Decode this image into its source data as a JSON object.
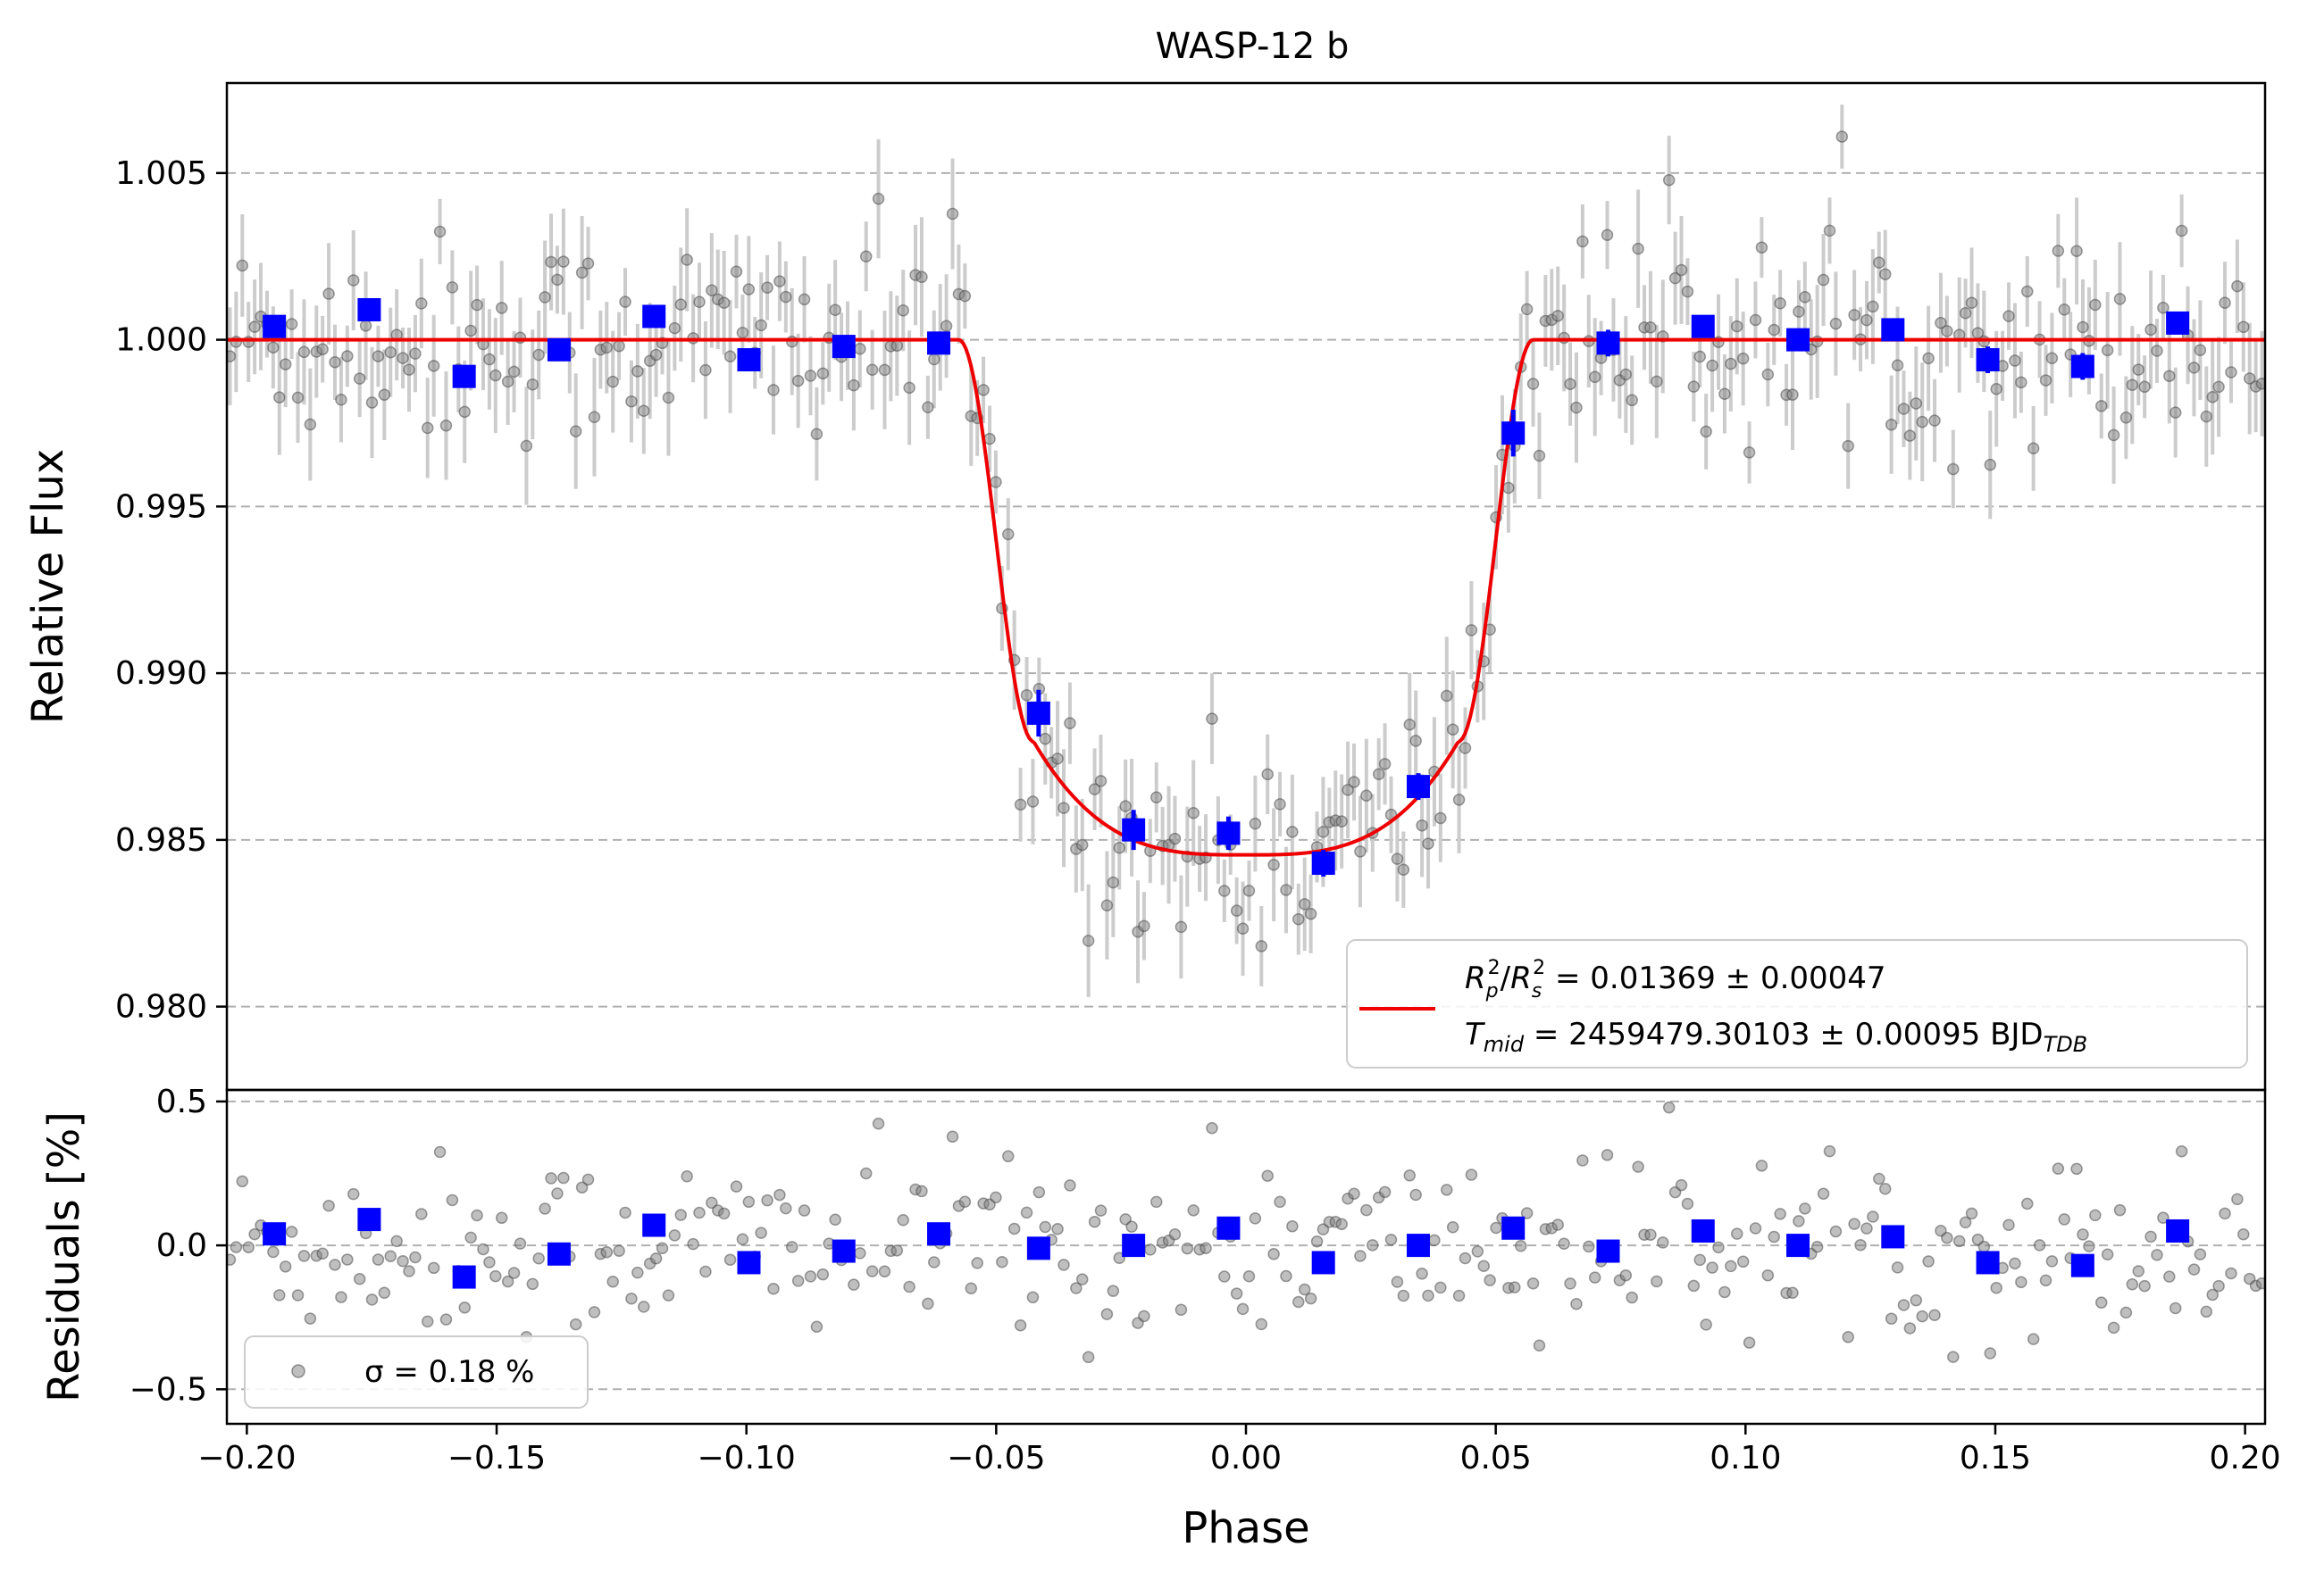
{
  "chart_data": [
    {
      "type": "scatter",
      "title": "WASP-12 b",
      "xlabel": "",
      "ylabel": "Relative Flux",
      "xlim": [
        -0.204,
        0.204
      ],
      "ylim": [
        0.9775,
        1.0077
      ],
      "xticks": [
        -0.2,
        -0.15,
        -0.1,
        -0.05,
        0.0,
        0.05,
        0.1,
        0.15,
        0.2
      ],
      "yticks": [
        0.98,
        0.985,
        0.99,
        0.995,
        1.0,
        1.005
      ],
      "ytick_labels": [
        "0.980",
        "0.985",
        "0.990",
        "0.995",
        "1.000",
        "1.005"
      ],
      "grid": "horizontal dashed",
      "colors": {
        "raw": "#808080",
        "errorbar": "#cccccc",
        "binned": "#0000ff",
        "model": "#ee0000"
      },
      "transit_model": {
        "rp2_rs2": 0.01369,
        "rp2_rs2_err": 0.00047,
        "t_mid": 2459479.30103,
        "t_mid_err": 0.00095,
        "depth_center": 0.98455,
        "ingress_start": -0.0575,
        "full_start": -0.0425,
        "full_end": 0.0425,
        "egress_end": 0.0575
      },
      "series": [
        {
          "name": "binned",
          "x": [
            -0.1945,
            -0.1755,
            -0.1565,
            -0.1375,
            -0.1185,
            -0.0995,
            -0.0805,
            -0.0615,
            -0.0415,
            -0.0225,
            -0.0035,
            0.0155,
            0.0345,
            0.0535,
            0.0725,
            0.0915,
            0.1105,
            0.1295,
            0.1485,
            0.1675,
            0.1865
          ],
          "y": [
            1.0004,
            1.0009,
            0.9989,
            0.9997,
            1.0007,
            0.9994,
            0.9998,
            0.9999,
            0.9888,
            0.9853,
            0.9852,
            0.9843,
            0.9866,
            0.9972,
            0.9999,
            1.0004,
            1.0,
            1.0003,
            0.9994,
            0.9992,
            1.0005
          ],
          "yerr": [
            0.0003,
            0.0003,
            0.0003,
            0.0003,
            0.0003,
            0.0003,
            0.0003,
            0.0003,
            0.0007,
            0.0006,
            0.0005,
            0.0004,
            0.0004,
            0.0007,
            0.0004,
            0.0003,
            0.0003,
            0.0003,
            0.0004,
            0.0004,
            0.0003
          ]
        }
      ],
      "legend": {
        "position": "lower-right",
        "line1": "R²p/R²s = 0.01369 ± 0.00047",
        "line2": "Tmid = 2459479.30103 ± 0.00095 BJD TDB"
      }
    },
    {
      "type": "scatter",
      "xlabel": "Phase",
      "ylabel": "Residuals [%]",
      "xlim": [
        -0.204,
        0.204
      ],
      "ylim": [
        -0.62,
        0.54
      ],
      "xticks": [
        -0.2,
        -0.15,
        -0.1,
        -0.05,
        0.0,
        0.05,
        0.1,
        0.15,
        0.2
      ],
      "xtick_labels": [
        "−0.20",
        "−0.15",
        "−0.10",
        "−0.05",
        "0.00",
        "0.05",
        "0.10",
        "0.15",
        "0.20"
      ],
      "yticks": [
        -0.5,
        0.0,
        0.5
      ],
      "ytick_labels": [
        "−0.5",
        "0.0",
        "0.5"
      ],
      "grid": "horizontal dashed",
      "series": [
        {
          "name": "binned residuals",
          "x": [
            -0.1945,
            -0.1755,
            -0.1565,
            -0.1375,
            -0.1185,
            -0.0995,
            -0.0805,
            -0.0615,
            -0.0415,
            -0.0225,
            -0.0035,
            0.0155,
            0.0345,
            0.0535,
            0.0725,
            0.0915,
            0.1105,
            0.1295,
            0.1485,
            0.1675,
            0.1865
          ],
          "y": [
            0.04,
            0.09,
            -0.11,
            -0.03,
            0.07,
            -0.06,
            -0.02,
            0.04,
            -0.01,
            0.0,
            0.06,
            -0.06,
            0.0,
            0.06,
            -0.02,
            0.05,
            0.0,
            0.03,
            -0.06,
            -0.07,
            0.05
          ]
        }
      ],
      "legend": {
        "position": "lower-left",
        "label": "σ = 0.18 %"
      }
    }
  ]
}
